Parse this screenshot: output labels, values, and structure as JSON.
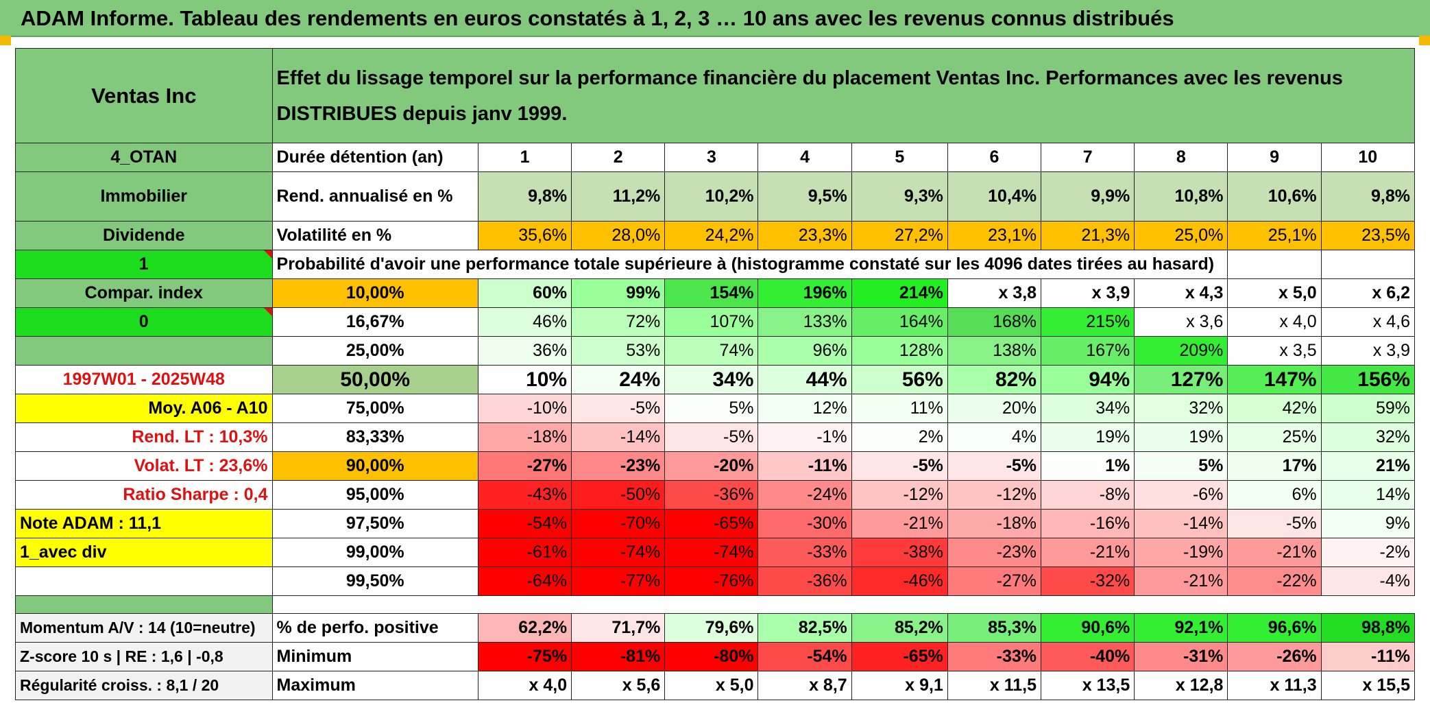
{
  "title": "ADAM Informe. Tableau des rendements en euros constatés à 1, 2, 3 … 10 ans avec les revenus connus distribués",
  "header": {
    "company": "Ventas Inc",
    "description": "Effet du lissage temporel sur la performance financière du placement Ventas Inc. Performances avec les revenus DISTRIBUES depuis janv 1999."
  },
  "side": {
    "code": "4_OTAN",
    "sector": "Immobilier",
    "type": "Dividende",
    "flag1": "1",
    "compar": "Compar. index",
    "flag0": "0",
    "period": "1997W01 - 2025W48",
    "moy": "Moy. A06 - A10",
    "rend_lt": "Rend. LT :   10,3%",
    "volat_lt": "Volat. LT :   23,6%",
    "sharpe": "Ratio Sharpe :    0,4",
    "note": "Note ADAM : 11,1",
    "variant": "1_avec div",
    "momentum": "Momentum A/V : 14 (10=neutre)",
    "zscore": "Z-score 10 s | RE : 1,6 | -0,8",
    "regularite": "Régularité croiss. : 8,1 / 20"
  },
  "stats": {
    "duration_label": "Durée détention (an)",
    "years": [
      "1",
      "2",
      "3",
      "4",
      "5",
      "6",
      "7",
      "8",
      "9",
      "10"
    ],
    "rend_label": "Rend. annualisé en %",
    "rend": [
      "9,8%",
      "11,2%",
      "10,2%",
      "9,5%",
      "9,3%",
      "10,4%",
      "9,9%",
      "10,8%",
      "10,6%",
      "9,8%"
    ],
    "vol_label": "Volatilité en %",
    "vol": [
      "35,6%",
      "28,0%",
      "24,2%",
      "23,3%",
      "27,2%",
      "23,1%",
      "21,3%",
      "25,0%",
      "25,1%",
      "23,5%"
    ]
  },
  "prob_title": "Probabilité d'avoir une performance totale supérieure à (histogramme constaté sur les 4096 dates tirées au hasard)",
  "prob_rows": [
    {
      "pct": "10,00%",
      "vals": [
        "60%",
        "99%",
        "154%",
        "196%",
        "214%",
        "x 3,8",
        "x 3,9",
        "x 4,3",
        "x 5,0",
        "x 6,2"
      ]
    },
    {
      "pct": "16,67%",
      "vals": [
        "46%",
        "72%",
        "107%",
        "133%",
        "164%",
        "168%",
        "215%",
        "x 3,6",
        "x 4,0",
        "x 4,6"
      ]
    },
    {
      "pct": "25,00%",
      "vals": [
        "36%",
        "53%",
        "74%",
        "96%",
        "128%",
        "138%",
        "167%",
        "209%",
        "x 3,5",
        "x 3,9"
      ]
    },
    {
      "pct": "50,00%",
      "vals": [
        "10%",
        "24%",
        "34%",
        "44%",
        "56%",
        "82%",
        "94%",
        "127%",
        "147%",
        "156%"
      ]
    },
    {
      "pct": "75,00%",
      "vals": [
        "-10%",
        "-5%",
        "5%",
        "12%",
        "11%",
        "20%",
        "34%",
        "32%",
        "42%",
        "59%"
      ]
    },
    {
      "pct": "83,33%",
      "vals": [
        "-18%",
        "-14%",
        "-5%",
        "-1%",
        "2%",
        "4%",
        "19%",
        "19%",
        "25%",
        "32%"
      ]
    },
    {
      "pct": "90,00%",
      "vals": [
        "-27%",
        "-23%",
        "-20%",
        "-11%",
        "-5%",
        "-5%",
        "1%",
        "5%",
        "17%",
        "21%"
      ]
    },
    {
      "pct": "95,00%",
      "vals": [
        "-43%",
        "-50%",
        "-36%",
        "-24%",
        "-12%",
        "-12%",
        "-8%",
        "-6%",
        "6%",
        "14%"
      ]
    },
    {
      "pct": "97,50%",
      "vals": [
        "-54%",
        "-70%",
        "-65%",
        "-30%",
        "-21%",
        "-18%",
        "-16%",
        "-14%",
        "-5%",
        "9%"
      ]
    },
    {
      "pct": "99,00%",
      "vals": [
        "-61%",
        "-74%",
        "-74%",
        "-33%",
        "-38%",
        "-23%",
        "-21%",
        "-19%",
        "-21%",
        "-2%"
      ]
    },
    {
      "pct": "99,50%",
      "vals": [
        "-64%",
        "-77%",
        "-76%",
        "-36%",
        "-46%",
        "-27%",
        "-32%",
        "-21%",
        "-22%",
        "-4%"
      ]
    }
  ],
  "bottom": {
    "positive_label": "% de perfo. positive",
    "positive": [
      "62,2%",
      "71,7%",
      "79,6%",
      "82,5%",
      "85,2%",
      "85,3%",
      "90,6%",
      "92,1%",
      "96,6%",
      "98,8%"
    ],
    "min_label": "Minimum",
    "min": [
      "-75%",
      "-81%",
      "-80%",
      "-54%",
      "-65%",
      "-33%",
      "-40%",
      "-31%",
      "-26%",
      "-11%"
    ],
    "max_label": "Maximum",
    "max": [
      "x 4,0",
      "x 5,6",
      "x 5,0",
      "x 8,7",
      "x 9,1",
      "x 11,5",
      "x 13,5",
      "x 12,8",
      "x 11,3",
      "x 15,5"
    ]
  },
  "colors": {
    "prob": [
      [
        "#ccffcc",
        "#99ff99",
        "#4ce64c",
        "#33ee33",
        "#22ee22",
        "#ffffff",
        "#ffffff",
        "#ffffff",
        "#ffffff",
        "#ffffff"
      ],
      [
        "#ddffdd",
        "#bbffbb",
        "#99ff99",
        "#88f288",
        "#66ee66",
        "#55dd55",
        "#33ee33",
        "#ffffff",
        "#ffffff",
        "#ffffff"
      ],
      [
        "#eeffee",
        "#ccffcc",
        "#bbffbb",
        "#aaffaa",
        "#99ff99",
        "#88f288",
        "#66ee66",
        "#33ee33",
        "#ffffff",
        "#ffffff"
      ],
      [
        "#ffffff",
        "#f4fff4",
        "#e8ffe8",
        "#ddffdd",
        "#ccffcc",
        "#aaffaa",
        "#99ff99",
        "#77ee77",
        "#55ee55",
        "#44e844"
      ],
      [
        "#ffd6d6",
        "#ffe6e6",
        "#fbfffb",
        "#f2fff2",
        "#f4fff4",
        "#ecffec",
        "#ddffdd",
        "#e2ffe2",
        "#d6ffd6",
        "#ccffcc"
      ],
      [
        "#ffa8a8",
        "#ffc2c2",
        "#ffe6e6",
        "#fff2f2",
        "#fdfffd",
        "#f8fff8",
        "#ecffec",
        "#ecffec",
        "#e6ffe6",
        "#ddffdd"
      ],
      [
        "#ff7777",
        "#ff8888",
        "#ff9a9a",
        "#ffc8c8",
        "#ffe6e6",
        "#ffe6e6",
        "#fdfffd",
        "#f6fff6",
        "#eeffee",
        "#e8ffe8"
      ],
      [
        "#ff2222",
        "#ff1c1c",
        "#ff4a4a",
        "#ff8a8a",
        "#ffc4c4",
        "#ffc4c4",
        "#ffd6d6",
        "#ffe0e0",
        "#f4fff4",
        "#eaffea"
      ],
      [
        "#ff0000",
        "#ff0000",
        "#ff0000",
        "#ff6a6a",
        "#ff9a9a",
        "#ffaaaa",
        "#ffb6b6",
        "#ffc0c0",
        "#ffe6e6",
        "#f2fff2"
      ],
      [
        "#ff0000",
        "#ff0000",
        "#ff0000",
        "#ff5a5a",
        "#ff3a3a",
        "#ff8a8a",
        "#ff9a9a",
        "#ffa6a6",
        "#ff9a9a",
        "#fff2f2"
      ],
      [
        "#ff0000",
        "#ff0000",
        "#ff0000",
        "#ff4a4a",
        "#ff2a2a",
        "#ff7a7a",
        "#ff4a4a",
        "#ff9a9a",
        "#ff8c8c",
        "#ffe6e6"
      ]
    ],
    "positive": [
      "#ffb6b6",
      "#ffe6e6",
      "#ddffdd",
      "#aaffaa",
      "#88f288",
      "#77ee77",
      "#33ee33",
      "#33ee33",
      "#33ee33",
      "#22dd22"
    ],
    "min": [
      "#ff0000",
      "#ff0000",
      "#ff0000",
      "#ff4a4a",
      "#ff2222",
      "#ff7a7a",
      "#ff5a5a",
      "#ff8a8a",
      "#ff9a9a",
      "#ffcccc"
    ],
    "rend": "#c6e0b4",
    "vol": "#ffc000"
  }
}
